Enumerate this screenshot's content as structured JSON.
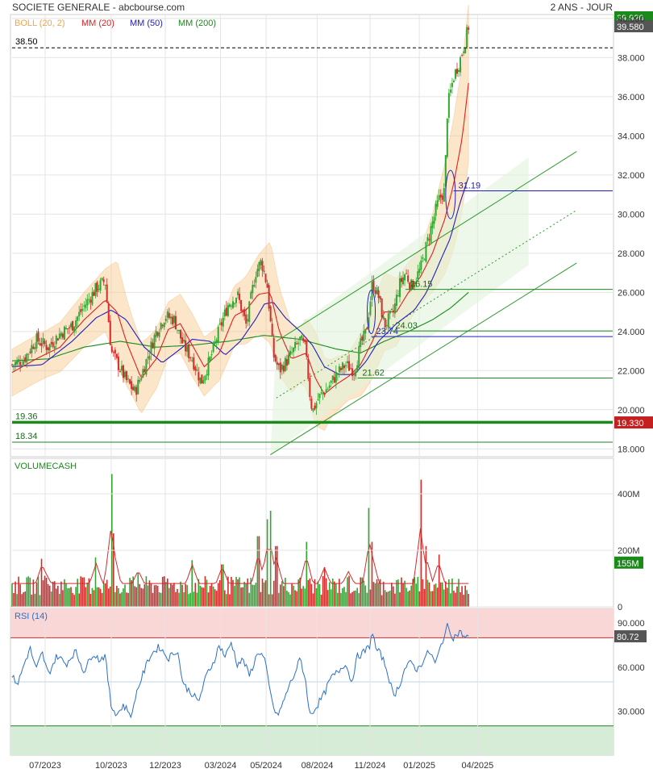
{
  "header": {
    "title": "SOCIETE GENERALE - abcbourse.com",
    "period": "2 ANS - JOUR"
  },
  "colors": {
    "bollinger": "#f5a347",
    "mm20": "#e02020",
    "mm50": "#2020c0",
    "mm200": "#1a8a1a",
    "candle_up": "#33a532",
    "candle_down": "#d42b2b",
    "rsi_line": "#2a6fc9",
    "rsi_overbought_zone": "#f9d7d7",
    "rsi_oversold_zone": "#d7ecd7",
    "channel": "#2e9a2e"
  },
  "price_panel": {
    "legend": [
      {
        "label": "BOLL (20, 2)",
        "color": "#f5a347"
      },
      {
        "label": "MM (20)",
        "color": "#e02020"
      },
      {
        "label": "MM (50)",
        "color": "#2020c0"
      },
      {
        "label": "MM (200)",
        "color": "#1a8a1a"
      }
    ],
    "last_price_tag": "39.580",
    "top_tag_partial": "39.920",
    "support_tag": "19.330",
    "line_labels": [
      "38.50",
      "19.36",
      "18.34",
      "31.19",
      "26.15",
      "23.74",
      "24.03",
      "21.62"
    ]
  },
  "volume_panel": {
    "label": "VOLUMECASH",
    "last_tag": "155M"
  },
  "rsi_panel": {
    "label": "RSI (14)",
    "last_tag": "80.72"
  },
  "x_axis": {
    "ticks": [
      "07/2023",
      "10/2023",
      "12/2023",
      "03/2024",
      "05/2024",
      "08/2024",
      "11/2024",
      "01/2025",
      "04/2025"
    ]
  },
  "chart_data": [
    {
      "type": "line",
      "name_hint": "price",
      "x_ticks": [
        "07/2023",
        "10/2023",
        "12/2023",
        "03/2024",
        "05/2024",
        "08/2024",
        "11/2024",
        "01/2025",
        "04/2025"
      ],
      "x_tick_pos": [
        0.055,
        0.165,
        0.255,
        0.347,
        0.423,
        0.508,
        0.596,
        0.678,
        0.775
      ],
      "ylim": [
        17.6,
        40.2
      ],
      "y_ticks": [
        "18.000",
        "20.000",
        "22.000",
        "24.000",
        "26.000",
        "28.000",
        "30.000",
        "32.000",
        "34.000",
        "36.000",
        "38.000",
        "40.000"
      ],
      "close_anchors": [
        [
          0.0,
          22.3
        ],
        [
          0.02,
          22.6
        ],
        [
          0.04,
          23.6
        ],
        [
          0.06,
          23.2
        ],
        [
          0.08,
          23.9
        ],
        [
          0.1,
          24.3
        ],
        [
          0.12,
          25.3
        ],
        [
          0.14,
          26.2
        ],
        [
          0.155,
          26.6
        ],
        [
          0.165,
          23.0
        ],
        [
          0.18,
          22.1
        ],
        [
          0.19,
          21.5
        ],
        [
          0.205,
          20.9
        ],
        [
          0.22,
          22.2
        ],
        [
          0.24,
          24.0
        ],
        [
          0.255,
          24.8
        ],
        [
          0.27,
          24.6
        ],
        [
          0.285,
          23.3
        ],
        [
          0.3,
          22.6
        ],
        [
          0.315,
          21.4
        ],
        [
          0.33,
          22.6
        ],
        [
          0.345,
          24.1
        ],
        [
          0.36,
          25.4
        ],
        [
          0.375,
          25.9
        ],
        [
          0.39,
          24.3
        ],
        [
          0.405,
          27.0
        ],
        [
          0.415,
          27.6
        ],
        [
          0.425,
          26.3
        ],
        [
          0.435,
          22.8
        ],
        [
          0.445,
          22.0
        ],
        [
          0.46,
          22.6
        ],
        [
          0.48,
          23.6
        ],
        [
          0.49,
          23.0
        ],
        [
          0.495,
          21.0
        ],
        [
          0.5,
          19.9
        ],
        [
          0.51,
          20.6
        ],
        [
          0.525,
          21.1
        ],
        [
          0.54,
          21.8
        ],
        [
          0.555,
          22.3
        ],
        [
          0.57,
          22.0
        ],
        [
          0.58,
          23.3
        ],
        [
          0.59,
          24.0
        ],
        [
          0.6,
          26.5
        ],
        [
          0.61,
          25.8
        ],
        [
          0.62,
          24.3
        ],
        [
          0.635,
          25.0
        ],
        [
          0.645,
          26.4
        ],
        [
          0.655,
          27.0
        ],
        [
          0.665,
          26.3
        ],
        [
          0.68,
          27.2
        ],
        [
          0.695,
          29.0
        ],
        [
          0.71,
          30.7
        ],
        [
          0.72,
          31.2
        ],
        [
          0.725,
          35.5
        ],
        [
          0.735,
          37.0
        ],
        [
          0.745,
          37.8
        ],
        [
          0.755,
          38.9
        ],
        [
          0.76,
          39.6
        ]
      ],
      "mm20_anchors": [
        [
          0.0,
          21.9
        ],
        [
          0.04,
          22.6
        ],
        [
          0.08,
          23.2
        ],
        [
          0.12,
          24.6
        ],
        [
          0.155,
          25.6
        ],
        [
          0.175,
          25.0
        ],
        [
          0.19,
          23.5
        ],
        [
          0.215,
          21.6
        ],
        [
          0.24,
          22.6
        ],
        [
          0.26,
          24.1
        ],
        [
          0.28,
          24.4
        ],
        [
          0.3,
          23.3
        ],
        [
          0.32,
          22.2
        ],
        [
          0.345,
          22.9
        ],
        [
          0.37,
          24.8
        ],
        [
          0.39,
          25.1
        ],
        [
          0.41,
          25.9
        ],
        [
          0.43,
          26.0
        ],
        [
          0.445,
          24.0
        ],
        [
          0.465,
          22.6
        ],
        [
          0.49,
          22.9
        ],
        [
          0.505,
          21.6
        ],
        [
          0.52,
          20.8
        ],
        [
          0.54,
          21.3
        ],
        [
          0.56,
          21.7
        ],
        [
          0.58,
          22.3
        ],
        [
          0.6,
          23.5
        ],
        [
          0.62,
          25.0
        ],
        [
          0.64,
          25.0
        ],
        [
          0.66,
          26.0
        ],
        [
          0.68,
          26.8
        ],
        [
          0.7,
          28.0
        ],
        [
          0.72,
          29.7
        ],
        [
          0.735,
          31.5
        ],
        [
          0.75,
          34.0
        ],
        [
          0.76,
          36.7
        ]
      ],
      "mm50_anchors": [
        [
          0.0,
          22.2
        ],
        [
          0.05,
          22.3
        ],
        [
          0.1,
          23.5
        ],
        [
          0.14,
          24.7
        ],
        [
          0.165,
          25.1
        ],
        [
          0.19,
          24.6
        ],
        [
          0.22,
          23.2
        ],
        [
          0.25,
          22.4
        ],
        [
          0.28,
          23.1
        ],
        [
          0.3,
          23.6
        ],
        [
          0.33,
          23.5
        ],
        [
          0.355,
          22.8
        ],
        [
          0.38,
          23.5
        ],
        [
          0.405,
          24.6
        ],
        [
          0.42,
          25.4
        ],
        [
          0.435,
          25.5
        ],
        [
          0.455,
          24.7
        ],
        [
          0.48,
          24.0
        ],
        [
          0.5,
          23.3
        ],
        [
          0.52,
          22.2
        ],
        [
          0.545,
          21.8
        ],
        [
          0.57,
          21.8
        ],
        [
          0.59,
          22.5
        ],
        [
          0.61,
          23.5
        ],
        [
          0.64,
          24.4
        ],
        [
          0.67,
          25.1
        ],
        [
          0.69,
          26.0
        ],
        [
          0.71,
          27.4
        ],
        [
          0.73,
          28.8
        ],
        [
          0.745,
          30.5
        ],
        [
          0.76,
          31.9
        ]
      ],
      "mm200_anchors": [
        [
          0.0,
          22.5
        ],
        [
          0.06,
          22.6
        ],
        [
          0.12,
          23.2
        ],
        [
          0.18,
          23.5
        ],
        [
          0.24,
          23.2
        ],
        [
          0.3,
          23.3
        ],
        [
          0.36,
          23.5
        ],
        [
          0.42,
          23.8
        ],
        [
          0.48,
          23.6
        ],
        [
          0.54,
          23.1
        ],
        [
          0.58,
          22.9
        ],
        [
          0.62,
          23.5
        ],
        [
          0.66,
          24.0
        ],
        [
          0.7,
          24.6
        ],
        [
          0.73,
          25.2
        ],
        [
          0.76,
          26.0
        ]
      ],
      "bands_half_width": [
        [
          0.0,
          1.2
        ],
        [
          0.06,
          1.2
        ],
        [
          0.12,
          1.4
        ],
        [
          0.155,
          1.6
        ],
        [
          0.175,
          2.6
        ],
        [
          0.2,
          2.0
        ],
        [
          0.23,
          1.6
        ],
        [
          0.26,
          1.4
        ],
        [
          0.3,
          1.6
        ],
        [
          0.34,
          1.4
        ],
        [
          0.38,
          1.6
        ],
        [
          0.41,
          2.0
        ],
        [
          0.43,
          2.6
        ],
        [
          0.45,
          2.1
        ],
        [
          0.48,
          1.4
        ],
        [
          0.505,
          2.4
        ],
        [
          0.53,
          1.5
        ],
        [
          0.56,
          1.2
        ],
        [
          0.59,
          1.8
        ],
        [
          0.62,
          2.0
        ],
        [
          0.65,
          1.6
        ],
        [
          0.68,
          1.4
        ],
        [
          0.7,
          2.0
        ],
        [
          0.72,
          2.8
        ],
        [
          0.74,
          3.5
        ],
        [
          0.76,
          4.0
        ]
      ],
      "horizontal_levels": [
        {
          "value": 38.5,
          "label": "38.50",
          "style": "dashed-black"
        },
        {
          "value": 19.36,
          "label": "19.36",
          "style": "thick-green"
        },
        {
          "value": 18.34,
          "label": "18.34",
          "style": "thin-green"
        },
        {
          "value": 31.19,
          "label": "31.19",
          "style": "blue",
          "from": 0.735
        },
        {
          "value": 26.15,
          "label": "26.15",
          "style": "green",
          "from": 0.655
        },
        {
          "value": 23.74,
          "label": "23.74",
          "style": "blue",
          "from": 0.598
        },
        {
          "value": 24.03,
          "label": "24.03",
          "style": "green",
          "from": 0.63
        },
        {
          "value": 21.62,
          "label": "21.62",
          "style": "green",
          "from": 0.575
        }
      ]
    },
    {
      "type": "bar",
      "name_hint": "volume",
      "ylim": [
        0,
        520
      ],
      "y_ticks": [
        "0",
        "200M",
        "400M"
      ],
      "typical": 75,
      "spikes": [
        [
          0.165,
          470
        ],
        [
          0.17,
          260
        ],
        [
          0.05,
          170
        ],
        [
          0.14,
          175
        ],
        [
          0.055,
          110
        ],
        [
          0.21,
          120
        ],
        [
          0.3,
          165
        ],
        [
          0.35,
          150
        ],
        [
          0.41,
          250
        ],
        [
          0.425,
          310
        ],
        [
          0.43,
          340
        ],
        [
          0.44,
          215
        ],
        [
          0.49,
          230
        ],
        [
          0.52,
          140
        ],
        [
          0.56,
          110
        ],
        [
          0.595,
          350
        ],
        [
          0.6,
          230
        ],
        [
          0.68,
          450
        ],
        [
          0.69,
          215
        ],
        [
          0.71,
          185
        ]
      ]
    },
    {
      "type": "line",
      "name_hint": "rsi",
      "ylim": [
        0,
        100
      ],
      "y_ticks": [
        "30.000",
        "60.000",
        "90.000"
      ],
      "levels": [
        80,
        20
      ],
      "anchors": [
        [
          0.0,
          53
        ],
        [
          0.01,
          49
        ],
        [
          0.02,
          62
        ],
        [
          0.03,
          73
        ],
        [
          0.04,
          58
        ],
        [
          0.05,
          70
        ],
        [
          0.06,
          55
        ],
        [
          0.075,
          68
        ],
        [
          0.09,
          62
        ],
        [
          0.105,
          71
        ],
        [
          0.12,
          57
        ],
        [
          0.135,
          70
        ],
        [
          0.145,
          65
        ],
        [
          0.155,
          68
        ],
        [
          0.16,
          50
        ],
        [
          0.165,
          33
        ],
        [
          0.175,
          28
        ],
        [
          0.185,
          34
        ],
        [
          0.2,
          27
        ],
        [
          0.205,
          40
        ],
        [
          0.215,
          52
        ],
        [
          0.23,
          68
        ],
        [
          0.245,
          74
        ],
        [
          0.26,
          66
        ],
        [
          0.275,
          72
        ],
        [
          0.285,
          48
        ],
        [
          0.3,
          42
        ],
        [
          0.31,
          36
        ],
        [
          0.325,
          56
        ],
        [
          0.335,
          63
        ],
        [
          0.345,
          75
        ],
        [
          0.355,
          67
        ],
        [
          0.365,
          77
        ],
        [
          0.375,
          62
        ],
        [
          0.385,
          65
        ],
        [
          0.395,
          54
        ],
        [
          0.41,
          71
        ],
        [
          0.42,
          66
        ],
        [
          0.43,
          42
        ],
        [
          0.44,
          26
        ],
        [
          0.45,
          34
        ],
        [
          0.46,
          46
        ],
        [
          0.47,
          55
        ],
        [
          0.48,
          66
        ],
        [
          0.49,
          48
        ],
        [
          0.495,
          27
        ],
        [
          0.505,
          32
        ],
        [
          0.52,
          42
        ],
        [
          0.53,
          52
        ],
        [
          0.545,
          58
        ],
        [
          0.555,
          63
        ],
        [
          0.565,
          50
        ],
        [
          0.575,
          67
        ],
        [
          0.585,
          70
        ],
        [
          0.595,
          74
        ],
        [
          0.6,
          85
        ],
        [
          0.605,
          73
        ],
        [
          0.615,
          68
        ],
        [
          0.625,
          57
        ],
        [
          0.635,
          40
        ],
        [
          0.645,
          48
        ],
        [
          0.655,
          60
        ],
        [
          0.665,
          63
        ],
        [
          0.675,
          58
        ],
        [
          0.685,
          65
        ],
        [
          0.695,
          71
        ],
        [
          0.705,
          62
        ],
        [
          0.715,
          76
        ],
        [
          0.725,
          88
        ],
        [
          0.735,
          80
        ],
        [
          0.745,
          84
        ],
        [
          0.755,
          80
        ],
        [
          0.76,
          80.7
        ]
      ]
    }
  ]
}
